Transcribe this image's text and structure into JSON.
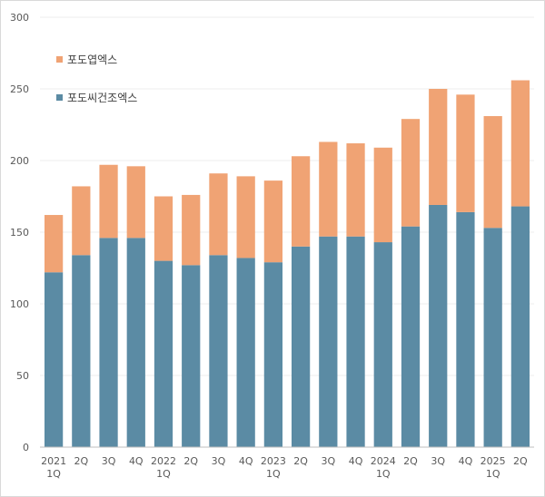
{
  "chart_data": {
    "type": "bar",
    "stacked": true,
    "categories": [
      [
        "2021",
        "1Q"
      ],
      [
        "2Q"
      ],
      [
        "3Q"
      ],
      [
        "4Q"
      ],
      [
        "2022",
        "1Q"
      ],
      [
        "2Q"
      ],
      [
        "3Q"
      ],
      [
        "4Q"
      ],
      [
        "2023",
        "1Q"
      ],
      [
        "2Q"
      ],
      [
        "3Q"
      ],
      [
        "4Q"
      ],
      [
        "2024",
        "1Q"
      ],
      [
        "2Q"
      ],
      [
        "3Q"
      ],
      [
        "4Q"
      ],
      [
        "2025",
        "1Q"
      ],
      [
        "2Q"
      ]
    ],
    "series": [
      {
        "name": "포도씨건조엑스",
        "color": "#5b8ba4",
        "values": [
          122,
          134,
          146,
          146,
          130,
          127,
          134,
          132,
          129,
          140,
          147,
          147,
          143,
          154,
          169,
          164,
          153,
          168
        ]
      },
      {
        "name": "포도엽엑스",
        "color": "#f0a374",
        "values": [
          40,
          48,
          51,
          50,
          45,
          49,
          57,
          57,
          57,
          63,
          66,
          65,
          66,
          75,
          81,
          82,
          78,
          88
        ]
      }
    ],
    "ylim": [
      0,
      300
    ],
    "yticks": [
      0,
      50,
      100,
      150,
      200,
      250,
      300
    ],
    "grid": true,
    "legend": "top-left"
  }
}
